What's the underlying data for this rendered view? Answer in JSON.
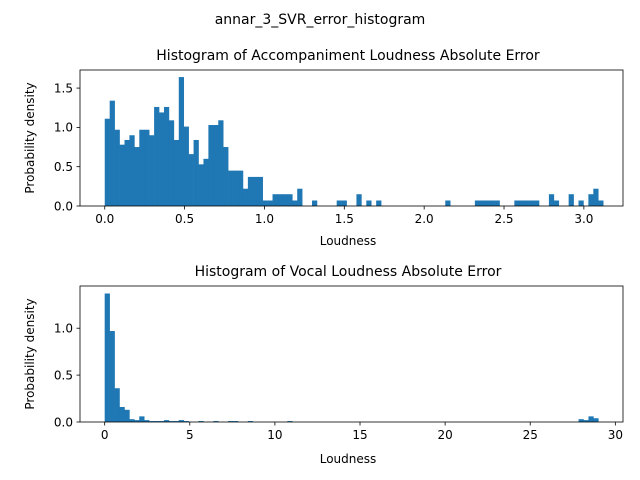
{
  "figure": {
    "suptitle": "annar_3_SVR_error_histogram"
  },
  "chart_data": [
    {
      "type": "bar",
      "title": "Histogram of Accompaniment Loudness Absolute Error",
      "xlabel": "Loudness",
      "ylabel": "Probability density",
      "xlim": [
        -0.155,
        3.245
      ],
      "ylim": [
        0,
        1.73
      ],
      "bin_start": 0.0,
      "bin_width": 0.0309,
      "xticks": [
        0.0,
        0.5,
        1.0,
        1.5,
        2.0,
        2.5,
        3.0
      ],
      "xtick_labels": [
        "0.0",
        "0.5",
        "1.0",
        "1.5",
        "2.0",
        "2.5",
        "3.0"
      ],
      "yticks": [
        0.0,
        0.5,
        1.0,
        1.5
      ],
      "ytick_labels": [
        "0.0",
        "0.5",
        "1.0",
        "1.5"
      ],
      "color": "#1f77b4",
      "values": [
        1.11,
        1.34,
        0.97,
        0.78,
        0.84,
        0.9,
        0.75,
        0.97,
        0.97,
        0.9,
        1.26,
        1.19,
        1.26,
        1.09,
        0.84,
        1.64,
        1.01,
        0.66,
        0.84,
        0.53,
        0.6,
        1.03,
        1.03,
        1.09,
        0.75,
        0.45,
        0.45,
        0.45,
        0.22,
        0.37,
        0.37,
        0.37,
        0.07,
        0.07,
        0.15,
        0.15,
        0.15,
        0.15,
        0.07,
        0.22,
        0.0,
        0.0,
        0.07,
        0.0,
        0.0,
        0.0,
        0.0,
        0.07,
        0.07,
        0.0,
        0.0,
        0.15,
        0.0,
        0.07,
        0.0,
        0.07,
        0.0,
        0.0,
        0.0,
        0.0,
        0.0,
        0.0,
        0.0,
        0.0,
        0.0,
        0.0,
        0.0,
        0.0,
        0.0,
        0.07,
        0.0,
        0.0,
        0.0,
        0.0,
        0.0,
        0.07,
        0.07,
        0.07,
        0.07,
        0.07,
        0.0,
        0.0,
        0.0,
        0.07,
        0.07,
        0.07,
        0.07,
        0.07,
        0.0,
        0.0,
        0.15,
        0.07,
        0.0,
        0.0,
        0.15,
        0.0,
        0.07,
        0.0,
        0.15,
        0.22,
        0.07
      ]
    },
    {
      "type": "bar",
      "title": "Histogram of Vocal Loudness Absolute Error",
      "xlabel": "Loudness",
      "ylabel": "Probability density",
      "xlim": [
        -1.45,
        30.45
      ],
      "ylim": [
        0,
        1.45
      ],
      "bin_start": 0.0,
      "bin_width": 0.29,
      "xticks": [
        0,
        5,
        10,
        15,
        20,
        25,
        30
      ],
      "xtick_labels": [
        "0",
        "5",
        "10",
        "15",
        "20",
        "25",
        "30"
      ],
      "yticks": [
        0.0,
        0.5,
        1.0
      ],
      "ytick_labels": [
        "0.0",
        "0.5",
        "1.0"
      ],
      "color": "#1f77b4",
      "values": [
        1.37,
        0.97,
        0.36,
        0.16,
        0.13,
        0.03,
        0.02,
        0.06,
        0.02,
        0.01,
        0.01,
        0.01,
        0.02,
        0.01,
        0.01,
        0.02,
        0.01,
        0.0,
        0.0,
        0.01,
        0.0,
        0.0,
        0.01,
        0.0,
        0.0,
        0.01,
        0.01,
        0.0,
        0.0,
        0.01,
        0.0,
        0.0,
        0.0,
        0.0,
        0.0,
        0.0,
        0.0,
        0.01,
        0.0,
        0.0,
        0.0,
        0.0,
        0.0,
        0.0,
        0.0,
        0.0,
        0.0,
        0.0,
        0.0,
        0.0,
        0.0,
        0.0,
        0.0,
        0.0,
        0.0,
        0.0,
        0.0,
        0.0,
        0.0,
        0.0,
        0.0,
        0.0,
        0.0,
        0.0,
        0.0,
        0.0,
        0.0,
        0.0,
        0.0,
        0.0,
        0.0,
        0.0,
        0.0,
        0.0,
        0.0,
        0.0,
        0.0,
        0.0,
        0.0,
        0.0,
        0.0,
        0.0,
        0.0,
        0.0,
        0.0,
        0.0,
        0.0,
        0.0,
        0.0,
        0.0,
        0.0,
        0.0,
        0.0,
        0.0,
        0.0,
        0.0,
        0.03,
        0.02,
        0.06,
        0.04
      ]
    }
  ]
}
